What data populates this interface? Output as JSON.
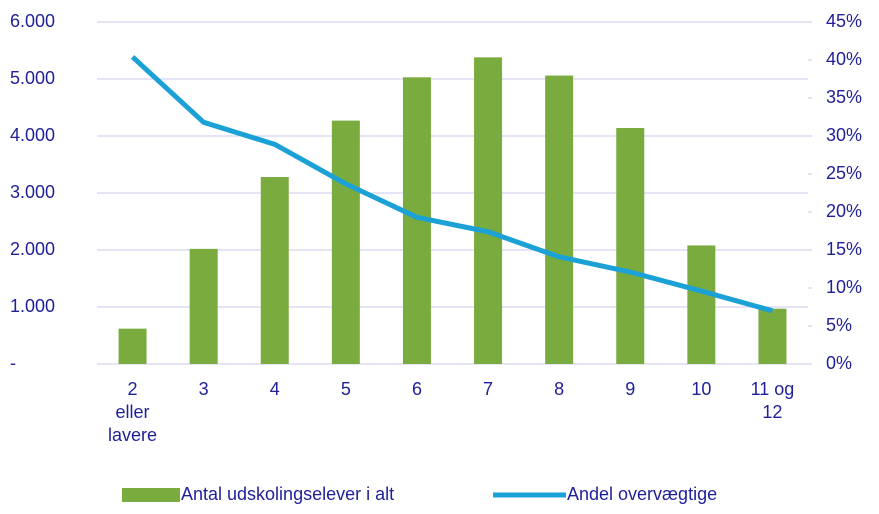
{
  "chart_data": {
    "type": "bar",
    "categories": [
      "2 eller lavere",
      "3",
      "4",
      "5",
      "6",
      "7",
      "8",
      "9",
      "10",
      "11 og 12"
    ],
    "series": [
      {
        "name": "Antal udskolingselever i alt",
        "type": "bar",
        "color": "#7aab3f",
        "values": [
          620,
          2020,
          3280,
          4270,
          5030,
          5380,
          5060,
          4140,
          2080,
          970
        ]
      },
      {
        "name": "Andel overvægtige",
        "type": "line",
        "axis": "y2",
        "color": "#1ba1d6",
        "values": [
          40.4,
          31.8,
          28.9,
          23.7,
          19.3,
          17.4,
          14.1,
          12.1,
          9.6,
          7.0
        ]
      }
    ],
    "ylim": [
      0,
      6000
    ],
    "yticks": [
      {
        "value": 0,
        "label": "-"
      },
      {
        "value": 1000,
        "label": "1.000"
      },
      {
        "value": 2000,
        "label": "2.000"
      },
      {
        "value": 3000,
        "label": "3.000"
      },
      {
        "value": 4000,
        "label": "4.000"
      },
      {
        "value": 5000,
        "label": "5.000"
      },
      {
        "value": 6000,
        "label": "6.000"
      }
    ],
    "y2lim": [
      0,
      45
    ],
    "y2ticks": [
      {
        "value": 0,
        "label": "0%"
      },
      {
        "value": 5,
        "label": "5%"
      },
      {
        "value": 10,
        "label": "10%"
      },
      {
        "value": 15,
        "label": "15%"
      },
      {
        "value": 20,
        "label": "20%"
      },
      {
        "value": 25,
        "label": "25%"
      },
      {
        "value": 30,
        "label": "30%"
      },
      {
        "value": 35,
        "label": "35%"
      },
      {
        "value": 40,
        "label": "40%"
      },
      {
        "value": 45,
        "label": "45%"
      }
    ],
    "grid": true,
    "legend": "bottom"
  }
}
